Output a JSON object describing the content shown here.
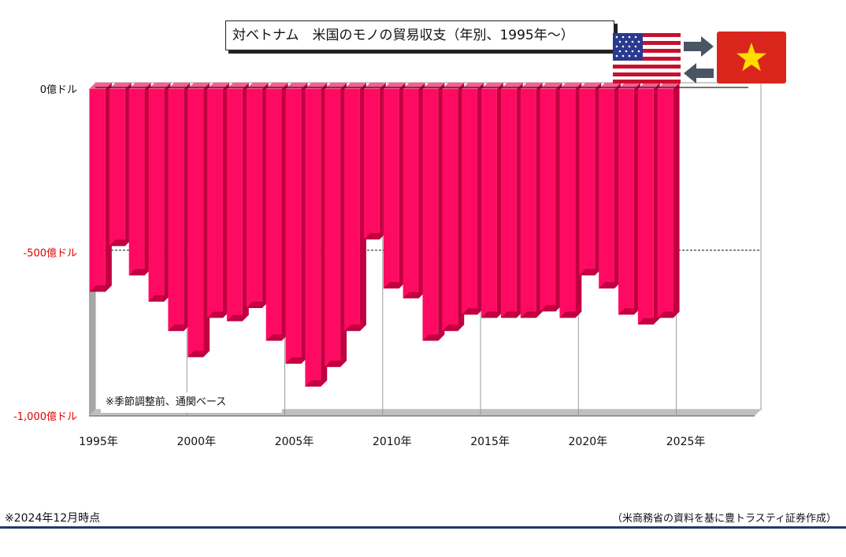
{
  "title": "対ベトナム　米国のモノの貿易収支（年別、1995年～）",
  "note": "※季節調整前、通関ベース",
  "footer": {
    "as_of": "※2024年12月時点",
    "source": "（米商務省の資料を基に豊トラスティ証券作成）"
  },
  "icons": {
    "left_flag": "us-flag-icon",
    "right_flag": "vietnam-flag-icon",
    "arrow_right": "arrow-right-icon",
    "arrow_left": "arrow-left-icon"
  },
  "colors": {
    "bar": "#ff0a63",
    "bar_side": "#c0003f",
    "bar_top": "#ff5a92",
    "negative_label": "#e00000",
    "footer_line": "#1f3a68",
    "vietnam_red": "#da251d",
    "vietnam_star": "#ffdd00",
    "arrow": "#4a5563"
  },
  "chart_data": {
    "type": "bar",
    "title": "対ベトナム　米国のモノの貿易収支（年別、1995年～）",
    "xlabel": "",
    "ylabel": "",
    "ylim": [
      -1000,
      0
    ],
    "y_ticks": [
      {
        "value": 0,
        "label": "0億ドル"
      },
      {
        "value": -500,
        "label": "-500億ドル"
      },
      {
        "value": -1000,
        "label": "-1,000億ドル"
      }
    ],
    "x_range": [
      1995,
      2029
    ],
    "x_tick_labels": [
      "1995年",
      "2000年",
      "2005年",
      "2010年",
      "2015年",
      "2020年",
      "2025年"
    ],
    "x_tick_years": [
      1995,
      2000,
      2005,
      2010,
      2015,
      2020,
      2025
    ],
    "grid": "vertical lines at labeled years; dashed horizontal line at -500",
    "x": [
      1995,
      1996,
      1997,
      1998,
      1999,
      2000,
      2001,
      2002,
      2003,
      2004,
      2005,
      2006,
      2007,
      2008,
      2009,
      2010,
      2011,
      2012,
      2013,
      2014,
      2015,
      2016,
      2017,
      2018,
      2019,
      2020,
      2021,
      2022,
      2023,
      2024
    ],
    "values": [
      -620,
      -480,
      -570,
      -650,
      -740,
      -820,
      -700,
      -710,
      -670,
      -770,
      -840,
      -910,
      -850,
      -740,
      -460,
      -610,
      -640,
      -770,
      -740,
      -690,
      -700,
      -700,
      -700,
      -680,
      -700,
      -570,
      -610,
      -690,
      -720,
      -700
    ]
  }
}
